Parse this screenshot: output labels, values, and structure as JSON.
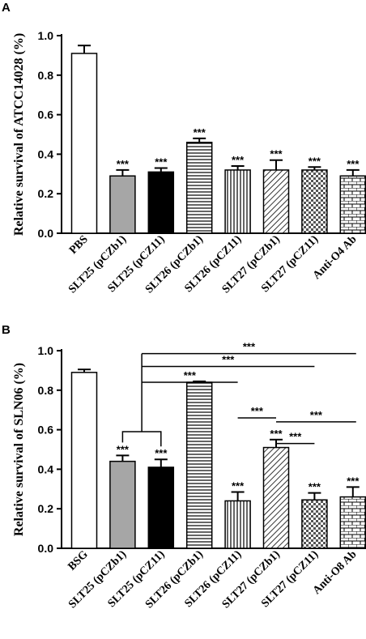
{
  "chart_data": [
    {
      "panel": "A",
      "type": "bar",
      "ylabel": "Relative survival of ATCC14028 (%)",
      "ylim": [
        0,
        1.0
      ],
      "yticks": [
        "0.0",
        "0.2",
        "0.4",
        "0.6",
        "0.8",
        "1.0"
      ],
      "categories": [
        "PBS",
        "SLT25 (pCZb1)",
        "SLT25 (pCZ11)",
        "SLT26 (pCZb1)",
        "SLT26 (pCZ11)",
        "SLT27 (pCZb1)",
        "SLT27 (pCZ11)",
        "Anti-O4 Ab"
      ],
      "values": [
        0.91,
        0.29,
        0.31,
        0.46,
        0.32,
        0.32,
        0.32,
        0.29
      ],
      "errors": [
        0.04,
        0.03,
        0.02,
        0.02,
        0.02,
        0.05,
        0.015,
        0.03
      ],
      "fills": [
        "white",
        "gray",
        "black",
        "hlines",
        "vlines",
        "diag",
        "checker",
        "brick"
      ],
      "significance": [
        "",
        "***",
        "***",
        "***",
        "***",
        "***",
        "***",
        "***"
      ]
    },
    {
      "panel": "B",
      "type": "bar",
      "ylabel": "Relative survival of SLN06 (%)",
      "ylim": [
        0,
        1.0
      ],
      "yticks": [
        "0.0",
        "0.2",
        "0.4",
        "0.6",
        "0.8",
        "1.0"
      ],
      "categories": [
        "BSG",
        "SLT25 (pCZb1)",
        "SLT25 (pCZ11)",
        "SLT26 (pCZb1)",
        "SLT26 (pCZ11)",
        "SLT27 (pCZb1)",
        "SLT27 (pCZ11)",
        "Anti-O8 Ab"
      ],
      "values": [
        0.89,
        0.44,
        0.41,
        0.84,
        0.24,
        0.51,
        0.245,
        0.26
      ],
      "errors": [
        0.015,
        0.03,
        0.04,
        0.005,
        0.045,
        0.04,
        0.035,
        0.05
      ],
      "fills": [
        "white",
        "gray",
        "black",
        "hlines",
        "vlines",
        "diag",
        "checker",
        "brick"
      ],
      "significance": [
        "",
        "***",
        "***",
        "",
        "***",
        "***",
        "***",
        "***"
      ],
      "comparisons": [
        {
          "label": "***",
          "from": 3,
          "to": 7
        },
        {
          "label": "***",
          "from": 3,
          "to": 6
        },
        {
          "label": "***",
          "from": 3,
          "to": 4
        },
        {
          "label": "***",
          "from": 4,
          "to": 5
        },
        {
          "label": "***",
          "from": 5,
          "to": 7
        },
        {
          "label": "***",
          "from": 5,
          "to": 6
        }
      ]
    }
  ]
}
